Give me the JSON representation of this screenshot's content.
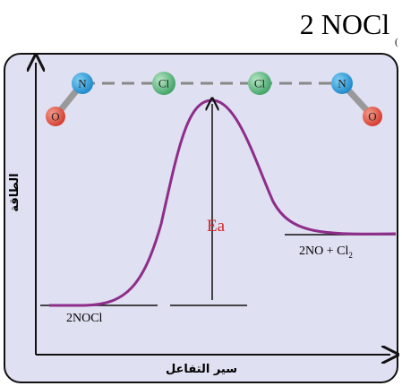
{
  "header": {
    "title": "2 NOCl",
    "mark": "("
  },
  "diagram": {
    "y_axis_label": "الطاقة",
    "x_axis_label": "سير التفاعل",
    "activation_label": "Ea",
    "reactants_label": "2NOCl",
    "products_label": {
      "text": "2NO + Cl",
      "subscript": "2"
    },
    "atoms": [
      {
        "label": "N"
      },
      {
        "label": "Cl"
      },
      {
        "label": "Cl"
      },
      {
        "label": "N"
      },
      {
        "label": "O"
      },
      {
        "label": "O"
      }
    ]
  }
}
